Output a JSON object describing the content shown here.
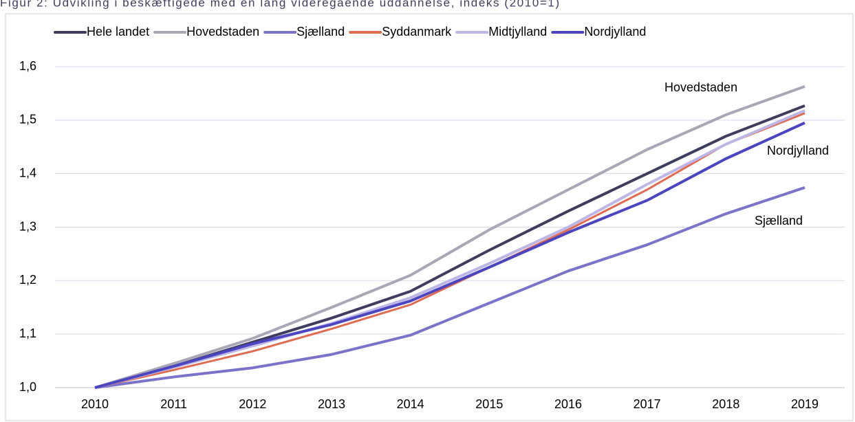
{
  "chart_data": {
    "type": "line",
    "title": "Figur 2: Udvikling i beskæftigede med en lang videregående uddannelse, indeks (2010=1)",
    "categories": [
      "2010",
      "2011",
      "2012",
      "2013",
      "2014",
      "2015",
      "2016",
      "2017",
      "2018",
      "2019"
    ],
    "series": [
      {
        "name": "Hele landet",
        "color": "#3f3d5e",
        "values": [
          1.0,
          1.04,
          1.085,
          1.13,
          1.18,
          1.257,
          1.33,
          1.4,
          1.47,
          1.527
        ]
      },
      {
        "name": "Hovedstaden",
        "color": "#a9a6b5",
        "values": [
          1.0,
          1.045,
          1.092,
          1.15,
          1.21,
          1.295,
          1.37,
          1.445,
          1.51,
          1.563
        ]
      },
      {
        "name": "Sjælland",
        "color": "#7b72c9",
        "values": [
          1.0,
          1.02,
          1.037,
          1.062,
          1.098,
          1.158,
          1.218,
          1.267,
          1.325,
          1.374
        ]
      },
      {
        "name": "Syddanmark",
        "color": "#e06b50",
        "values": [
          1.0,
          1.033,
          1.068,
          1.11,
          1.155,
          1.225,
          1.295,
          1.37,
          1.455,
          1.513
        ]
      },
      {
        "name": "Midtjylland",
        "color": "#bcb6e6",
        "values": [
          1.0,
          1.038,
          1.078,
          1.12,
          1.168,
          1.232,
          1.3,
          1.38,
          1.455,
          1.518
        ]
      },
      {
        "name": "Nordjylland",
        "color": "#4b45c0",
        "values": [
          1.0,
          1.04,
          1.082,
          1.118,
          1.162,
          1.225,
          1.29,
          1.35,
          1.428,
          1.495
        ]
      }
    ],
    "ylim": [
      1.0,
      1.6
    ],
    "yticks": [
      {
        "value": 1.0,
        "label": "1,0"
      },
      {
        "value": 1.1,
        "label": "1,1"
      },
      {
        "value": 1.2,
        "label": "1,2"
      },
      {
        "value": 1.3,
        "label": "1,3"
      },
      {
        "value": 1.4,
        "label": "1,4"
      },
      {
        "value": 1.5,
        "label": "1,5"
      },
      {
        "value": 1.6,
        "label": "1,6"
      }
    ],
    "grid": true,
    "legend": "top",
    "annotations": [
      "Hovedstaden",
      "Nordjylland",
      "Sjælland"
    ]
  }
}
